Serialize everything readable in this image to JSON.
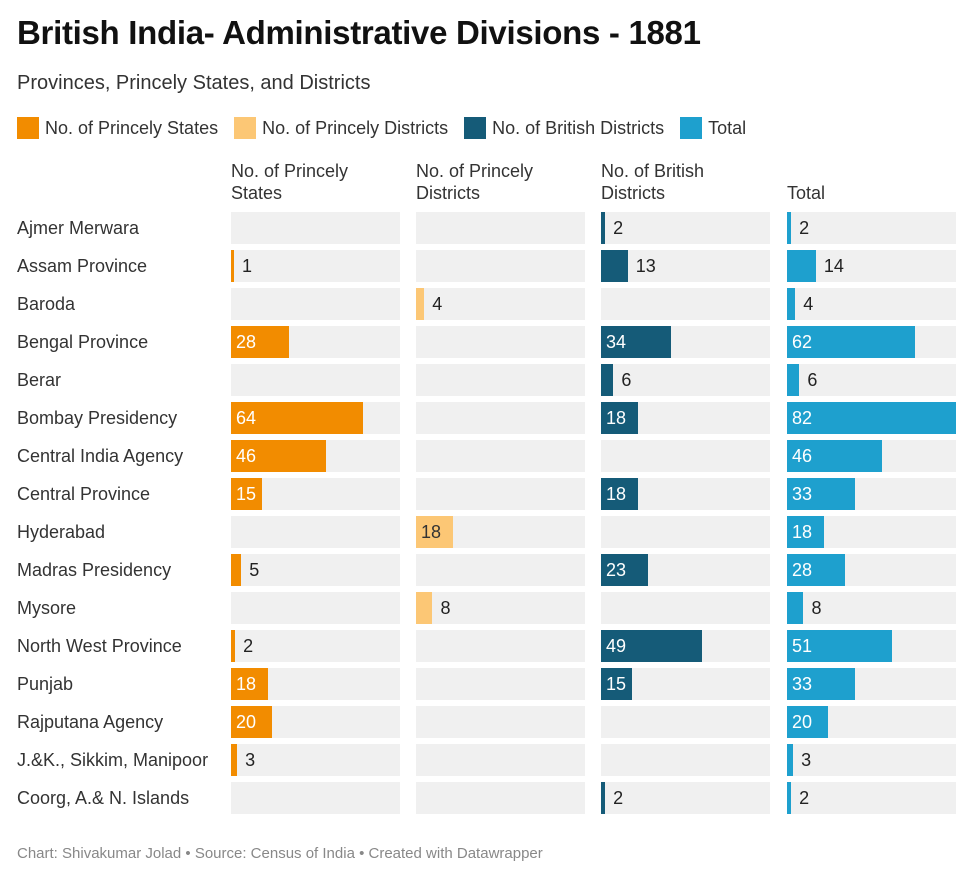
{
  "title": "British India- Administrative Divisions - 1881",
  "subtitle": "Provinces, Princely States, and Districts",
  "footer": "Chart: Shivakumar Jolad • Source: Census of India • Created with Datawrapper",
  "chart_data": {
    "type": "bar",
    "title": "British India- Administrative Divisions - 1881",
    "subtitle": "Provinces, Princely States, and Districts",
    "categories": [
      "Ajmer Merwara",
      "Assam Province",
      "Baroda",
      "Bengal Province",
      "Berar",
      "Bombay Presidency",
      "Central India Agency",
      "Central Province",
      "Hyderabad",
      "Madras Presidency",
      "Mysore",
      "North West Province",
      "Punjab",
      "Rajputana Agency",
      "J.&K., Sikkim, Manipoor",
      "Coorg, A.& N. Islands"
    ],
    "xlim": [
      0,
      82
    ],
    "legend_position": "top",
    "series": [
      {
        "name": "No. of Princely States",
        "header": "No. of Princely States",
        "color": "#f28c00",
        "text_color": "#ffffff",
        "values": [
          null,
          1,
          null,
          28,
          null,
          64,
          46,
          15,
          null,
          5,
          null,
          2,
          18,
          20,
          3,
          null
        ]
      },
      {
        "name": "No. of Princely Districts",
        "header": "No. of Princely Districts",
        "color": "#fcc775",
        "text_color": "#333333",
        "values": [
          null,
          null,
          4,
          null,
          null,
          null,
          null,
          null,
          18,
          null,
          8,
          null,
          null,
          null,
          null,
          null
        ]
      },
      {
        "name": "No. of British Districts",
        "header": "No. of British Districts",
        "color": "#155b78",
        "text_color": "#ffffff",
        "values": [
          2,
          13,
          null,
          34,
          6,
          18,
          null,
          18,
          null,
          23,
          null,
          49,
          15,
          null,
          null,
          2
        ]
      },
      {
        "name": "Total",
        "header": "Total",
        "color": "#1ea0ce",
        "text_color": "#ffffff",
        "values": [
          2,
          14,
          4,
          62,
          6,
          82,
          46,
          33,
          18,
          28,
          8,
          51,
          33,
          20,
          3,
          2
        ]
      }
    ]
  }
}
